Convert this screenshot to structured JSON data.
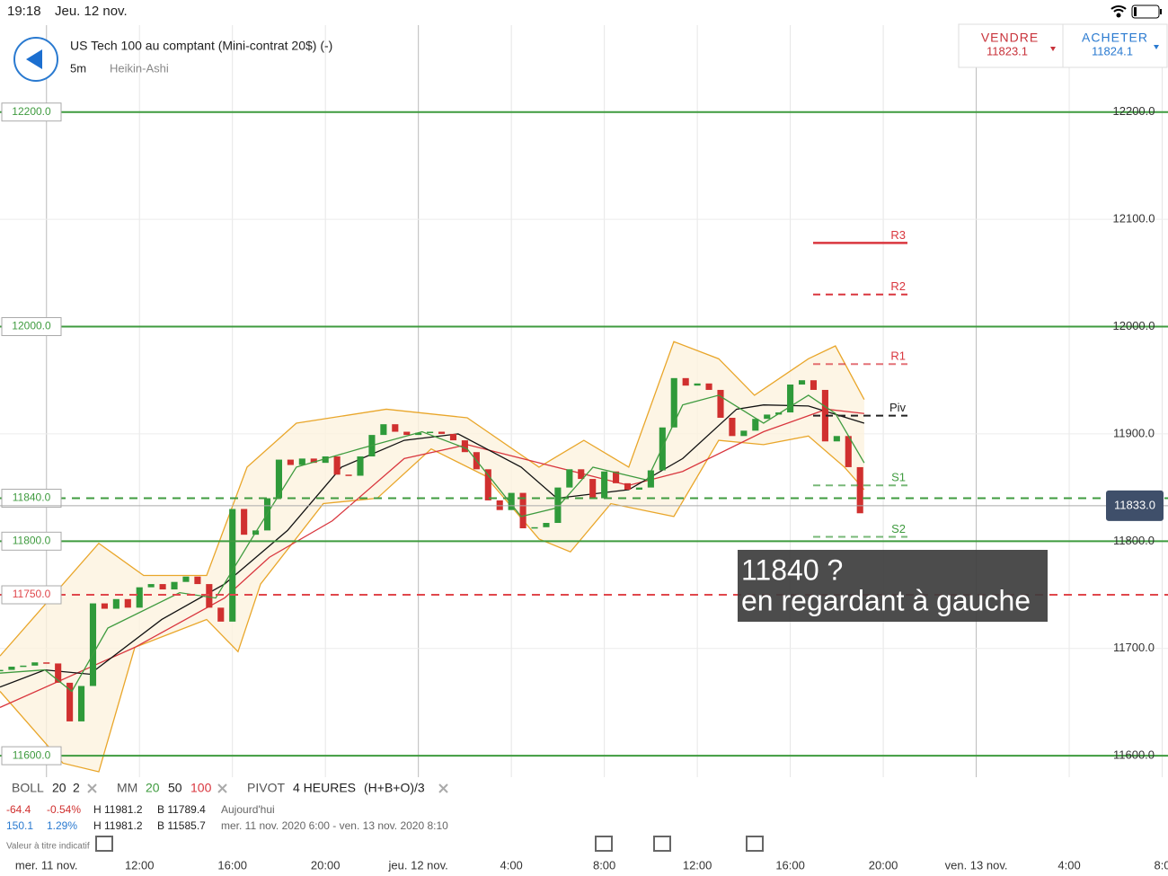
{
  "status_bar": {
    "time": "19:18",
    "date": "Jeu. 12 nov."
  },
  "header": {
    "title": "US Tech 100 au comptant (Mini-contrat 20$) (-)",
    "interval": "5m",
    "chart_style": "Heikin-Ashi"
  },
  "sell": {
    "label": "VENDRE",
    "price": "11823.1"
  },
  "buy": {
    "label": "ACHETER",
    "price": "11824.1"
  },
  "chart_data": {
    "type": "candlestick",
    "xlim": [
      6,
      56.25
    ],
    "ylim": [
      11580,
      12281
    ],
    "xticks": [
      {
        "value": 8,
        "label": "mer. 11 nov."
      },
      {
        "value": 12,
        "label": "12:00"
      },
      {
        "value": 16,
        "label": "16:00"
      },
      {
        "value": 20,
        "label": "20:00"
      },
      {
        "value": 24,
        "label": "jeu. 12 nov."
      },
      {
        "value": 28,
        "label": "4:00"
      },
      {
        "value": 32,
        "label": "8:00"
      },
      {
        "value": 36,
        "label": "12:00"
      },
      {
        "value": 40,
        "label": "16:00"
      },
      {
        "value": 44,
        "label": "20:00"
      },
      {
        "value": 48,
        "label": "ven. 13 nov."
      },
      {
        "value": 52,
        "label": "4:00"
      },
      {
        "value": 56,
        "label": "8:0"
      }
    ],
    "yticks": [
      {
        "value": 12200,
        "label": "12200.0"
      },
      {
        "value": 12100,
        "label": "12100.0"
      },
      {
        "value": 12000,
        "label": "12000.0"
      },
      {
        "value": 11900,
        "label": "11900.0"
      },
      {
        "value": 11800,
        "label": "11800.0"
      },
      {
        "value": 11700,
        "label": "11700.0"
      },
      {
        "value": 11600,
        "label": "11600.0"
      }
    ],
    "grid": true,
    "up_color": "#2f9a3a",
    "down_color": "#d0302f",
    "candles": {
      "x": [
        6,
        6.5,
        7,
        7.5,
        8,
        8.5,
        9,
        9.5,
        10,
        10.5,
        11,
        11.5,
        12,
        12.5,
        13,
        13.5,
        14,
        14.5,
        15,
        15.5,
        16,
        16.5,
        17,
        17.5,
        18,
        18.5,
        19,
        19.5,
        20,
        20.5,
        21,
        21.5,
        22,
        22.5,
        23,
        23.5,
        24,
        24.5,
        25,
        25.5,
        26,
        26.5,
        27,
        27.5,
        28,
        28.5,
        29,
        29.5,
        30,
        30.5,
        31,
        31.5,
        32,
        32.5,
        33,
        33.5,
        34,
        34.5,
        35,
        35.5,
        36,
        36.5,
        37,
        37.5,
        38,
        38.5,
        39,
        39.5,
        40,
        40.5,
        41,
        41.5,
        42,
        42.5,
        43
      ],
      "values": [
        11680,
        11683,
        11684,
        11687,
        11686,
        11668,
        11632,
        11665,
        11742,
        11737,
        11746,
        11738,
        11757,
        11760,
        11755,
        11762,
        11767,
        11760,
        11738,
        11725,
        11830,
        11806,
        11810,
        11840,
        11876,
        11871,
        11877,
        11873,
        11879,
        11862,
        11861,
        11879,
        11899,
        11909,
        11902,
        11899,
        11901,
        11902,
        11900,
        11894,
        11883,
        11867,
        11838,
        11829,
        11845,
        11812,
        11813,
        11817,
        11850,
        11867,
        11858,
        11840,
        11865,
        11854,
        11848,
        11850,
        11866,
        11906,
        11952,
        11945,
        11947,
        11941,
        11915,
        11898,
        11903,
        11914,
        11918,
        11920,
        11946,
        11950,
        11941,
        11893,
        11898,
        11869,
        11826
      ]
    },
    "ma100": {
      "color": "#d9363e",
      "x": [
        6,
        11.8,
        15.66,
        17.59,
        20.3,
        23.39,
        26.1,
        29.19,
        33.05,
        35.37,
        38.85,
        41.56,
        43.18
      ],
      "values": [
        11645,
        11701,
        11747,
        11785,
        11819,
        11877,
        11890,
        11873,
        11852,
        11865,
        11902,
        11923,
        11919
      ]
    },
    "ma50": {
      "color": "#111111",
      "x": [
        6,
        7.93,
        9.86,
        12.96,
        15.66,
        18.37,
        20.69,
        23.39,
        25.71,
        28.42,
        29.96,
        33.05,
        35.37,
        37.69,
        38.85,
        40.78,
        43.18
      ],
      "values": [
        11664,
        11680,
        11676,
        11727,
        11760,
        11810,
        11869,
        11894,
        11900,
        11869,
        11840,
        11848,
        11877,
        11923,
        11927,
        11926,
        11910
      ]
    },
    "ma20": {
      "color": "#3f9b3f",
      "x": [
        6,
        7.93,
        9.09,
        10.64,
        13.73,
        15.28,
        16.82,
        18.75,
        21.46,
        24.16,
        26.1,
        28.42,
        29.96,
        31.51,
        33.83,
        35.37,
        36.92,
        38.85,
        40.78,
        41.94,
        43.18
      ],
      "values": [
        11677,
        11680,
        11660,
        11719,
        11752,
        11747,
        11802,
        11869,
        11886,
        11902,
        11886,
        11823,
        11831,
        11869,
        11857,
        11927,
        11936,
        11910,
        11936,
        11919,
        11873
      ]
    },
    "boll_upper": {
      "color": "#e9a62a",
      "x": [
        6,
        10.25,
        12.18,
        14.89,
        16.63,
        18.75,
        22.62,
        26.1,
        29.19,
        31.12,
        33.05,
        34.99,
        36.92,
        38.46,
        40.78,
        41.94,
        43.18
      ],
      "values": [
        11693,
        11798,
        11768,
        11768,
        11869,
        11910,
        11923,
        11915,
        11869,
        11894,
        11869,
        11986,
        11970,
        11936,
        11970,
        11982,
        11932
      ]
    },
    "boll_lower": {
      "color": "#e9a62a",
      "x": [
        6,
        8.71,
        10.25,
        11.8,
        14.89,
        16.24,
        17.21,
        19.91,
        22.23,
        24.55,
        26.87,
        29.19,
        30.54,
        32.28,
        34.99,
        36.92,
        38.85,
        40.78,
        42.33,
        43.18
      ],
      "values": [
        11660,
        11593,
        11585,
        11701,
        11727,
        11697,
        11760,
        11835,
        11840,
        11886,
        11861,
        11802,
        11790,
        11835,
        11823,
        11894,
        11890,
        11898,
        11869,
        11848
      ]
    },
    "levels": [
      {
        "value": 12200,
        "label": "12200.0",
        "color": "#3f9b3f",
        "dashed": false
      },
      {
        "value": 12000,
        "label": "12000.0",
        "color": "#3f9b3f",
        "dashed": false
      },
      {
        "value": 11840,
        "label": "11840.0",
        "color": "#3f9b3f",
        "dashed": true
      },
      {
        "value": 11800,
        "label": "11800.0",
        "color": "#3f9b3f",
        "dashed": false
      },
      {
        "value": 11750,
        "label": "11750.0",
        "color": "#e0474c",
        "dashed": true
      },
      {
        "value": 11600,
        "label": "11600.0",
        "color": "#3f9b3f",
        "dashed": false
      }
    ],
    "pivots": [
      {
        "label": "R3",
        "value": 12078,
        "color": "#d9363e",
        "dashed": false
      },
      {
        "label": "R2",
        "value": 12030,
        "color": "#d9363e",
        "dashed": true
      },
      {
        "label": "R1",
        "value": 11965,
        "color": "#d9363e",
        "dashed": true
      },
      {
        "label": "Piv",
        "value": 11917,
        "color": "#222222",
        "dashed": true
      },
      {
        "label": "S1",
        "value": 11852,
        "color": "#3f9b3f",
        "dashed": true
      },
      {
        "label": "S2",
        "value": 11804,
        "color": "#3f9b3f",
        "dashed": true
      }
    ],
    "current_price": {
      "value": 11833,
      "label": "11833.0"
    },
    "annotation": [
      "11840 ?",
      "en regardant à gauche"
    ]
  },
  "indicators": {
    "boll": [
      "BOLL",
      "20",
      "2"
    ],
    "mm": [
      "MM",
      "20",
      "50",
      "100"
    ],
    "pivot": [
      "PIVOT",
      "4 HEURES",
      "(H+B+O)/3"
    ],
    "row1": [
      "-64.4",
      "-0.54%",
      "H 11981.2",
      "B 11789.4",
      "Aujourd'hui"
    ],
    "row2": [
      "150.1",
      "1.29%",
      "H 11981.2",
      "B 11585.7",
      "mer. 11 nov. 2020 6:00 - ven. 13 nov. 2020 8:10"
    ],
    "note": "Valeur à titre indicatif"
  }
}
